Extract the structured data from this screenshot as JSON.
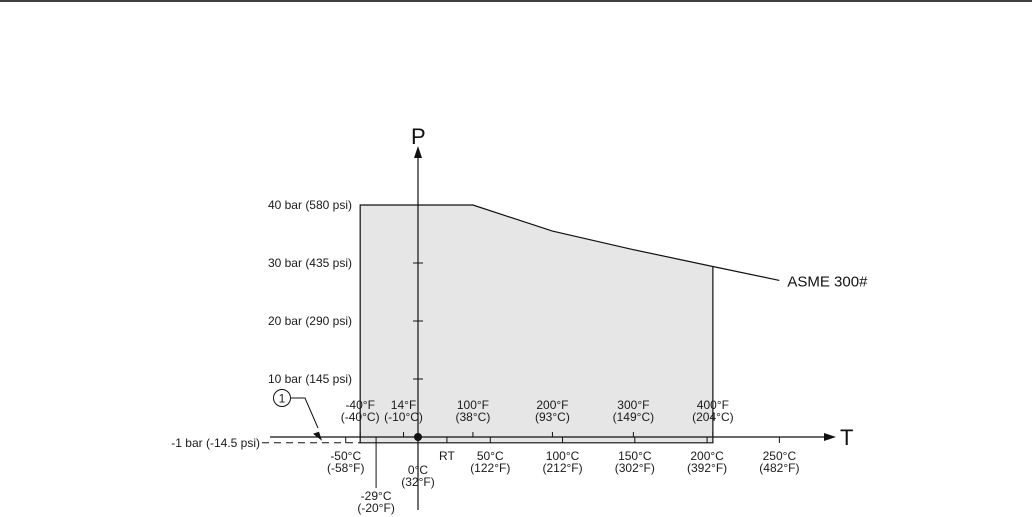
{
  "chart_data": {
    "type": "area",
    "title": "",
    "xlabel": "T",
    "ylabel": "P",
    "series": [
      {
        "name": "ASME 300#",
        "x_celsius": [
          -40,
          38,
          93,
          149,
          204,
          250
        ],
        "y_bar": [
          40,
          40,
          35.5,
          32.3,
          29.4,
          27.0
        ]
      }
    ],
    "operating_region": {
      "t_min_celsius": -40,
      "t_max_celsius": 204,
      "p_min_bar": -1,
      "fill_color": "#e6e6e6"
    },
    "y_ticks": [
      {
        "value": 40,
        "label": "40 bar (580 psi)"
      },
      {
        "value": 30,
        "label": "30 bar (435 psi)"
      },
      {
        "value": 20,
        "label": "20 bar (290 psi)"
      },
      {
        "value": 10,
        "label": "10 bar (145 psi)"
      }
    ],
    "vacuum_line": {
      "value": -1,
      "label": "-1 bar (-14.5 psi)"
    },
    "callout": {
      "label": "1"
    },
    "top_tick_labels": [
      {
        "value": -40,
        "line1": "-40°F",
        "line2": "(-40°C)"
      },
      {
        "value": -10,
        "line1": "14°F",
        "line2": "(-10°C)"
      },
      {
        "value": 38,
        "line1": "100°F",
        "line2": "(38°C)"
      },
      {
        "value": 93,
        "line1": "200°F",
        "line2": "(93°C)"
      },
      {
        "value": 149,
        "line1": "300°F",
        "line2": "(149°C)"
      },
      {
        "value": 204,
        "line1": "400°F",
        "line2": "(204°C)"
      }
    ],
    "bottom_tick_labels": [
      {
        "value": -50,
        "line1": "-50°C",
        "line2": "(-58°F)"
      },
      {
        "value": 0,
        "line1": "0°C",
        "line2": "(32°F)"
      },
      {
        "value": 20,
        "line1": "RT",
        "line2": ""
      },
      {
        "value": 50,
        "line1": "50°C",
        "line2": "(122°F)"
      },
      {
        "value": 100,
        "line1": "100°C",
        "line2": "(212°F)"
      },
      {
        "value": 150,
        "line1": "150°C",
        "line2": "(302°F)"
      },
      {
        "value": 200,
        "line1": "200°C",
        "line2": "(392°F)"
      },
      {
        "value": 250,
        "line1": "250°C",
        "line2": "(482°F)"
      }
    ],
    "low_tick_label": {
      "value": -29,
      "line1": "-29°C",
      "line2": "(-20°F)"
    },
    "grid": false
  }
}
